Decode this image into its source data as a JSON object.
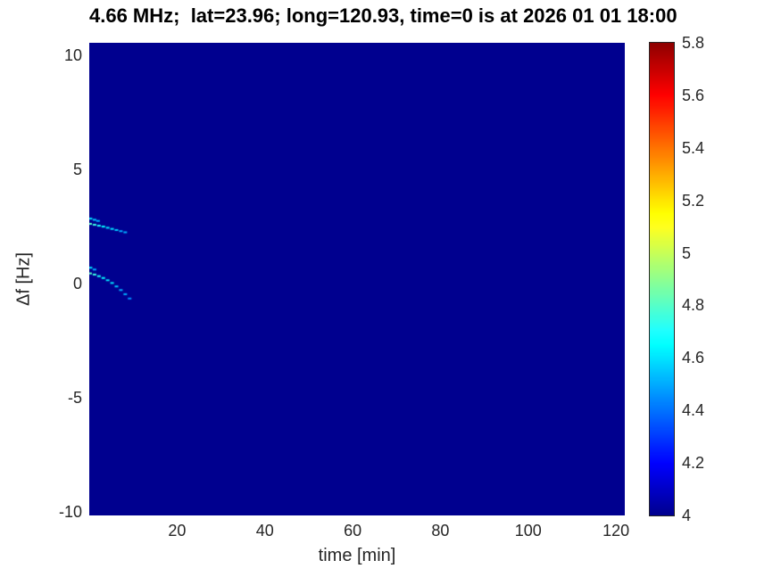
{
  "chart_data": {
    "type": "heatmap",
    "title": "4.66 MHz;  lat=23.96; long=120.93, time=0 is at 2026 01 01 18:00",
    "xlabel": "time [min]",
    "ylabel": "Δf [Hz]",
    "xlim": [
      0,
      122
    ],
    "ylim": [
      -10.15,
      10.55
    ],
    "x_tick_labels": [
      "20",
      "40",
      "60",
      "80",
      "100",
      "120"
    ],
    "y_tick_labels": [
      "-10",
      "-5",
      "0",
      "5",
      "10"
    ],
    "colormap": "jet",
    "clim": [
      4,
      5.8
    ],
    "colorbar_tick_labels": [
      "4",
      "4.2",
      "4.4",
      "4.6",
      "4.8",
      "5",
      "5.2",
      "5.4",
      "5.6",
      "5.8"
    ],
    "background_value": 4,
    "grid": false,
    "legend": null,
    "point_format": "[time_min, delta_f_hz, value]",
    "traces": [
      {
        "name": "upper doppler trace",
        "points": [
          [
            0.2,
            2.62,
            4.8
          ],
          [
            1.2,
            2.58,
            4.75
          ],
          [
            2.2,
            2.54,
            4.7
          ],
          [
            3.2,
            2.5,
            4.65
          ],
          [
            4.2,
            2.45,
            4.6
          ],
          [
            5.2,
            2.4,
            4.6
          ],
          [
            6.2,
            2.35,
            4.55
          ],
          [
            7.2,
            2.3,
            4.5
          ],
          [
            8.2,
            2.25,
            4.5
          ]
        ]
      },
      {
        "name": "upper trace branch",
        "points": [
          [
            0.3,
            2.85,
            4.6
          ],
          [
            1.2,
            2.8,
            4.55
          ],
          [
            2.0,
            2.75,
            4.5
          ]
        ]
      },
      {
        "name": "lower doppler trace",
        "points": [
          [
            0.2,
            0.45,
            4.8
          ],
          [
            1.2,
            0.4,
            4.75
          ],
          [
            2.2,
            0.33,
            4.7
          ],
          [
            3.2,
            0.25,
            4.65
          ],
          [
            4.2,
            0.15,
            4.6
          ],
          [
            5.2,
            0.03,
            4.6
          ],
          [
            6.2,
            -0.12,
            4.55
          ],
          [
            7.2,
            -0.28,
            4.5
          ],
          [
            8.2,
            -0.46,
            4.5
          ],
          [
            9.2,
            -0.65,
            4.45
          ]
        ]
      },
      {
        "name": "lower trace branch",
        "points": [
          [
            0.3,
            0.7,
            4.6
          ],
          [
            1.2,
            0.62,
            4.5
          ]
        ]
      }
    ]
  },
  "colors": {
    "plot_background": "#00008f",
    "axis_text": "#262626",
    "title_text": "#000000"
  }
}
